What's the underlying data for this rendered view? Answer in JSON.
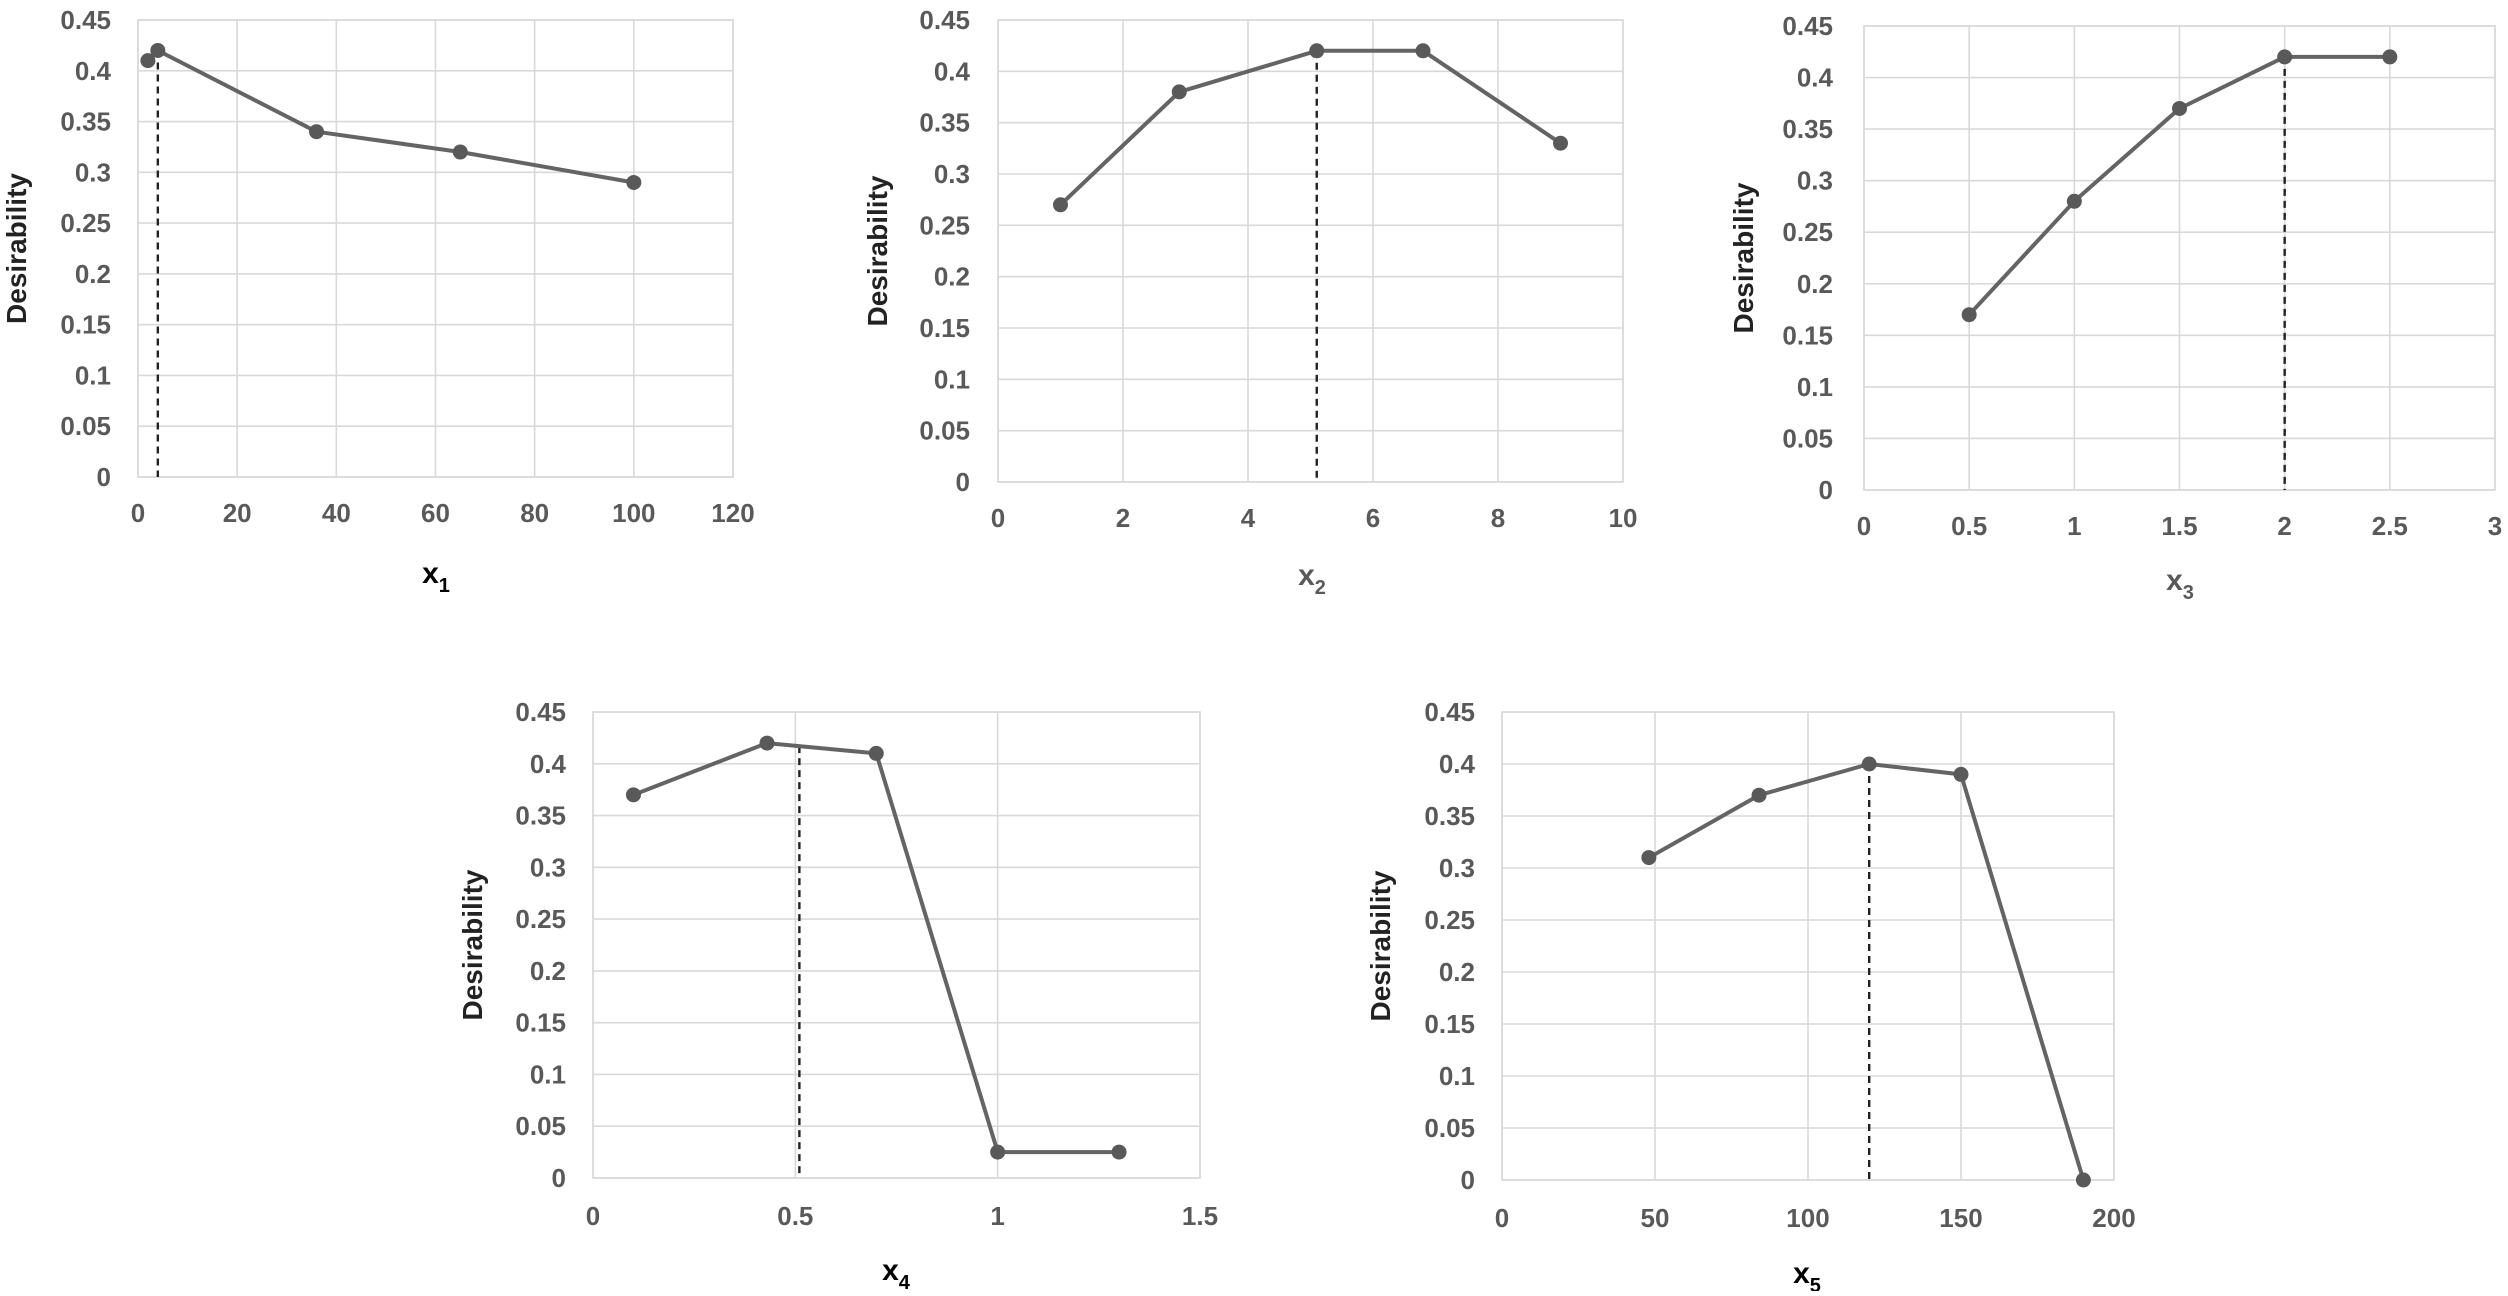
{
  "chart_data": [
    {
      "type": "line",
      "xlabel": "x",
      "xlabel_sub": "1",
      "xlabel_color": "#000000",
      "ylabel": "Desirability",
      "xlim": [
        0,
        120
      ],
      "ylim": [
        0,
        0.45
      ],
      "xticks": [
        "0",
        "20",
        "40",
        "60",
        "80",
        "100",
        "120"
      ],
      "yticks": [
        "0",
        "0.05",
        "0.1",
        "0.15",
        "0.2",
        "0.25",
        "0.3",
        "0.35",
        "0.4",
        "0.45"
      ],
      "grid": true,
      "series": [
        {
          "x": [
            2,
            4,
            36,
            65,
            100
          ],
          "y": [
            0.41,
            0.42,
            0.34,
            0.32,
            0.29
          ]
        }
      ],
      "reference_x": 4
    },
    {
      "type": "line",
      "xlabel": "x",
      "xlabel_sub": "2",
      "xlabel_color": "#595959",
      "ylabel": "Desirability",
      "xlim": [
        0,
        10
      ],
      "ylim": [
        0,
        0.45
      ],
      "xticks": [
        "0",
        "2",
        "4",
        "6",
        "8",
        "10"
      ],
      "yticks": [
        "0",
        "0.05",
        "0.1",
        "0.15",
        "0.2",
        "0.25",
        "0.3",
        "0.35",
        "0.4",
        "0.45"
      ],
      "grid": true,
      "series": [
        {
          "x": [
            1,
            2.9,
            5.1,
            6.8,
            9
          ],
          "y": [
            0.27,
            0.38,
            0.42,
            0.42,
            0.33
          ]
        }
      ],
      "reference_x": 5.1
    },
    {
      "type": "line",
      "xlabel": "x",
      "xlabel_sub": "3",
      "xlabel_color": "#595959",
      "ylabel": "Desirability",
      "xlim": [
        0,
        3
      ],
      "ylim": [
        0,
        0.45
      ],
      "xticks": [
        "0",
        "0.5",
        "1",
        "1.5",
        "2",
        "2.5",
        "3"
      ],
      "yticks": [
        "0",
        "0.05",
        "0.1",
        "0.15",
        "0.2",
        "0.25",
        "0.3",
        "0.35",
        "0.4",
        "0.45"
      ],
      "grid": true,
      "series": [
        {
          "x": [
            0.5,
            1,
            1.5,
            2,
            2.5
          ],
          "y": [
            0.17,
            0.28,
            0.37,
            0.42,
            0.42
          ]
        }
      ],
      "reference_x": 2
    },
    {
      "type": "line",
      "xlabel": "x",
      "xlabel_sub": "4",
      "xlabel_color": "#000000",
      "ylabel": "Desirability",
      "xlim": [
        0,
        1.5
      ],
      "ylim": [
        0,
        0.45
      ],
      "xticks": [
        "0",
        "0.5",
        "1",
        "1.5"
      ],
      "yticks": [
        "0",
        "0.05",
        "0.1",
        "0.15",
        "0.2",
        "0.25",
        "0.3",
        "0.35",
        "0.4",
        "0.45"
      ],
      "grid": true,
      "series": [
        {
          "x": [
            0.1,
            0.43,
            0.7,
            1.0,
            1.3
          ],
          "y": [
            0.37,
            0.42,
            0.41,
            0.025,
            0.025
          ]
        }
      ],
      "reference_x": 0.51
    },
    {
      "type": "line",
      "xlabel": "x",
      "xlabel_sub": "5",
      "xlabel_color": "#000000",
      "ylabel": "Desirability",
      "xlim": [
        0,
        200
      ],
      "ylim": [
        0,
        0.45
      ],
      "xticks": [
        "0",
        "50",
        "100",
        "150",
        "200"
      ],
      "yticks": [
        "0",
        "0.05",
        "0.1",
        "0.15",
        "0.2",
        "0.25",
        "0.3",
        "0.35",
        "0.4",
        "0.45"
      ],
      "grid": true,
      "series": [
        {
          "x": [
            48,
            84,
            120,
            150,
            190
          ],
          "y": [
            0.31,
            0.37,
            0.4,
            0.39,
            0.0
          ]
        }
      ],
      "reference_x": 120
    }
  ]
}
